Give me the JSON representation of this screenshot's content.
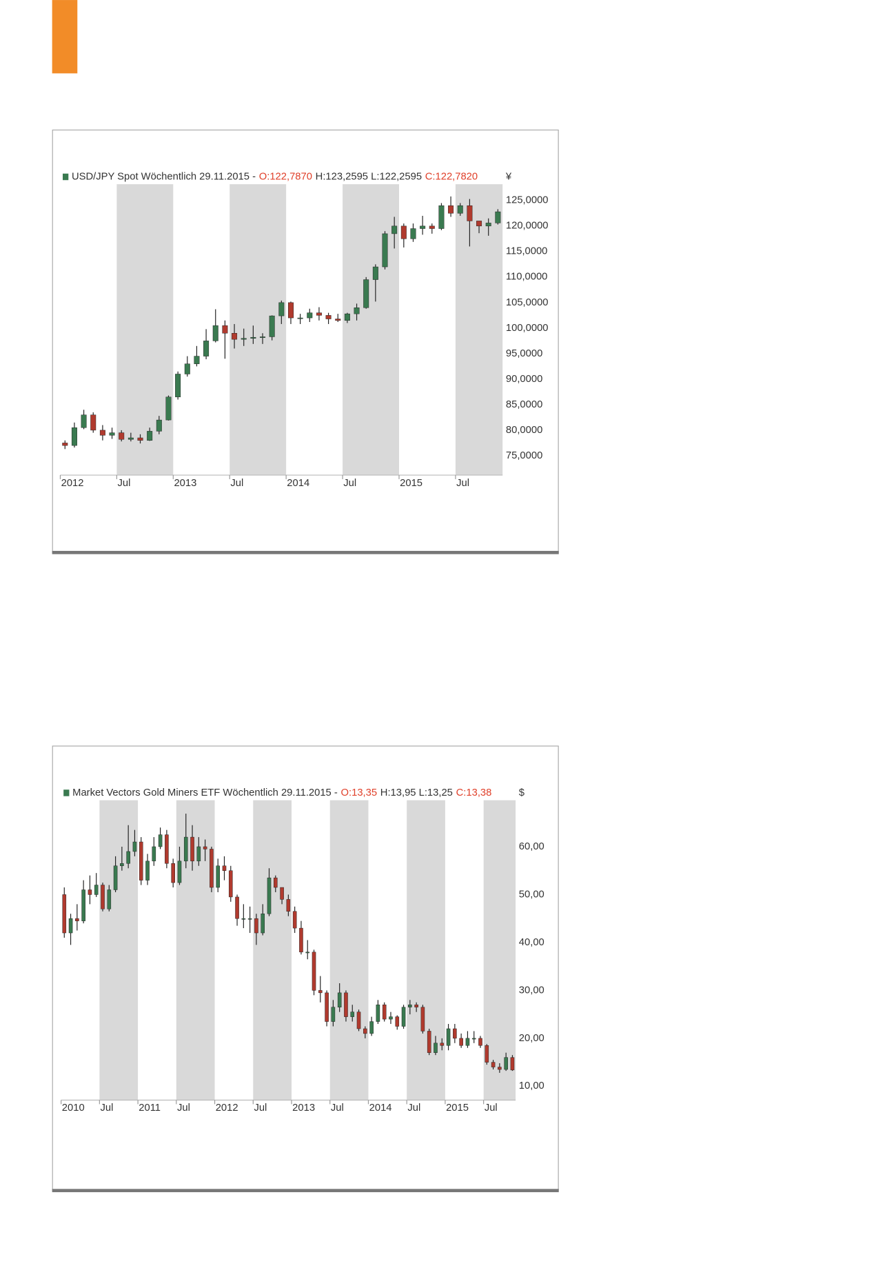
{
  "chart_data": [
    {
      "type": "candlestick",
      "header": [
        "USD/JPY Spot Wöchentlich  29.11.2015 -",
        "O:122,7870",
        "H:123,2595 L:122,2595",
        "C:122,7820"
      ],
      "header_colors": [
        "#333333",
        "#e0402a",
        "#333333",
        "#e0402a"
      ],
      "unit": "¥",
      "up_color": "#3a7a50",
      "down_color": "#b03a2e",
      "shade_color": "#d9d9d9",
      "x": [
        "2012-01",
        "2012-02",
        "2012-03",
        "2012-04",
        "2012-05",
        "2012-06",
        "2012-07",
        "2012-08",
        "2012-09",
        "2012-10",
        "2012-11",
        "2012-12",
        "2013-01",
        "2013-02",
        "2013-03",
        "2013-04",
        "2013-05",
        "2013-06",
        "2013-07",
        "2013-08",
        "2013-09",
        "2013-10",
        "2013-11",
        "2013-12",
        "2014-01",
        "2014-02",
        "2014-03",
        "2014-04",
        "2014-05",
        "2014-06",
        "2014-07",
        "2014-08",
        "2014-09",
        "2014-10",
        "2014-11",
        "2014-12",
        "2015-01",
        "2015-02",
        "2015-03",
        "2015-04",
        "2015-05",
        "2015-06",
        "2015-07",
        "2015-08",
        "2015-09",
        "2015-10",
        "2015-11"
      ],
      "open": [
        77.5,
        77,
        80.5,
        83,
        80,
        79,
        79.5,
        78.2,
        78.5,
        78,
        79.8,
        82,
        86.5,
        91,
        93,
        94.5,
        97.5,
        100.5,
        99,
        97.8,
        98,
        98.2,
        98.3,
        102.4,
        105,
        102,
        102,
        103,
        102.5,
        101.8,
        101.5,
        102.8,
        104,
        109.5,
        112,
        118.5,
        120,
        117.5,
        119.5,
        120,
        119.5,
        124,
        122.5,
        124,
        121,
        120,
        120.6
      ],
      "high": [
        78,
        81.5,
        84,
        83.5,
        81,
        80.5,
        80,
        79.5,
        79.2,
        80.5,
        82.8,
        86.8,
        91.5,
        94.5,
        96.5,
        99.8,
        103.7,
        101.5,
        100.8,
        99.9,
        100.5,
        99,
        102.5,
        105.4,
        105.2,
        102.8,
        103.8,
        104.1,
        103,
        102.8,
        103,
        104.8,
        110,
        112.5,
        119,
        121.8,
        120.5,
        120.5,
        122,
        120.5,
        124.5,
        125.8,
        124.5,
        125.3,
        121,
        121.5,
        123.3
      ],
      "low": [
        76.3,
        76.6,
        80.2,
        79.5,
        78,
        78.3,
        77.8,
        77.8,
        77.4,
        77.9,
        79.2,
        81.9,
        86,
        90.5,
        92.5,
        93.9,
        97.2,
        94,
        96,
        96.5,
        96.9,
        96.9,
        97.6,
        100.8,
        100.8,
        100.8,
        101.2,
        101.5,
        100.8,
        101.2,
        101,
        101.5,
        103.8,
        105.2,
        111.5,
        115.6,
        115.8,
        116.9,
        118.3,
        118.5,
        119.2,
        121.8,
        122,
        116,
        118.6,
        118.1,
        120.3
      ],
      "close": [
        77,
        80.5,
        83,
        80,
        79,
        79.5,
        78.2,
        78.5,
        78,
        79.8,
        82,
        86.5,
        91,
        93,
        94.5,
        97.5,
        100.5,
        99,
        97.8,
        98,
        98.2,
        98.3,
        102.4,
        105,
        102,
        102,
        103,
        102.5,
        101.8,
        101.5,
        102.8,
        104,
        109.5,
        112,
        118.5,
        120,
        117.5,
        119.5,
        120,
        119.5,
        124,
        122.5,
        124,
        121,
        120,
        120.6,
        122.8
      ],
      "xlim": [
        "2012-01",
        "2015-12"
      ],
      "xticks": [
        {
          "value": "2012-01",
          "label": "2012"
        },
        {
          "value": "2012-07",
          "label": "Jul"
        },
        {
          "value": "2013-01",
          "label": "2013"
        },
        {
          "value": "2013-07",
          "label": "Jul"
        },
        {
          "value": "2014-01",
          "label": "2014"
        },
        {
          "value": "2014-07",
          "label": "Jul"
        },
        {
          "value": "2015-01",
          "label": "2015"
        },
        {
          "value": "2015-07",
          "label": "Jul"
        }
      ],
      "shading": [
        [
          "2012-07",
          "2013-01"
        ],
        [
          "2013-07",
          "2014-01"
        ],
        [
          "2014-07",
          "2015-01"
        ],
        [
          "2015-07",
          "2015-12"
        ]
      ],
      "ylim": [
        71.2,
        128.2
      ],
      "yticks": [
        {
          "value": 75,
          "label": "75,0000"
        },
        {
          "value": 80,
          "label": "80,0000"
        },
        {
          "value": 85,
          "label": "85,0000"
        },
        {
          "value": 90,
          "label": "90,0000"
        },
        {
          "value": 95,
          "label": "95,0000"
        },
        {
          "value": 100,
          "label": "100,0000"
        },
        {
          "value": 105,
          "label": "105,0000"
        },
        {
          "value": 110,
          "label": "110,0000"
        },
        {
          "value": 115,
          "label": "115,0000"
        },
        {
          "value": 120,
          "label": "120,0000"
        },
        {
          "value": 125,
          "label": "125,0000"
        }
      ]
    },
    {
      "type": "candlestick",
      "header": [
        "Market Vectors Gold Miners ETF Wöchentlich  29.11.2015 -",
        "O:13,35",
        "H:13,95 L:13,25",
        "C:13,38"
      ],
      "header_colors": [
        "#333333",
        "#e0402a",
        "#333333",
        "#e0402a"
      ],
      "unit": "$",
      "up_color": "#3a7a50",
      "down_color": "#b03a2e",
      "shade_color": "#d9d9d9",
      "x": [
        "2010-01",
        "2010-02",
        "2010-03",
        "2010-04",
        "2010-05",
        "2010-06",
        "2010-07",
        "2010-08",
        "2010-09",
        "2010-10",
        "2010-11",
        "2010-12",
        "2011-01",
        "2011-02",
        "2011-03",
        "2011-04",
        "2011-05",
        "2011-06",
        "2011-07",
        "2011-08",
        "2011-09",
        "2011-10",
        "2011-11",
        "2011-12",
        "2012-01",
        "2012-02",
        "2012-03",
        "2012-04",
        "2012-05",
        "2012-06",
        "2012-07",
        "2012-08",
        "2012-09",
        "2012-10",
        "2012-11",
        "2012-12",
        "2013-01",
        "2013-02",
        "2013-03",
        "2013-04",
        "2013-05",
        "2013-06",
        "2013-07",
        "2013-08",
        "2013-09",
        "2013-10",
        "2013-11",
        "2013-12",
        "2014-01",
        "2014-02",
        "2014-03",
        "2014-04",
        "2014-05",
        "2014-06",
        "2014-07",
        "2014-08",
        "2014-09",
        "2014-10",
        "2014-11",
        "2014-12",
        "2015-01",
        "2015-02",
        "2015-03",
        "2015-04",
        "2015-05",
        "2015-06",
        "2015-07",
        "2015-08",
        "2015-09",
        "2015-10",
        "2015-11"
      ],
      "open": [
        50,
        42,
        45,
        44.5,
        51,
        50,
        52,
        47,
        51,
        56,
        56.5,
        59,
        61,
        53,
        57,
        60,
        62.5,
        56.5,
        52.5,
        57,
        62,
        57,
        60,
        59.5,
        51.5,
        56,
        55,
        49.5,
        45,
        45,
        45,
        42,
        46,
        53.5,
        51.5,
        49,
        46.5,
        43,
        38,
        38,
        30,
        29.5,
        23.5,
        26.5,
        29.5,
        24.5,
        25.5,
        22,
        21,
        23.5,
        27,
        24,
        24.5,
        22.5,
        26.5,
        27,
        26.5,
        21.5,
        17,
        19,
        18.5,
        22,
        20,
        18.5,
        20,
        20,
        18.5,
        15,
        14,
        13.5,
        16
      ],
      "high": [
        51.5,
        46,
        48,
        53,
        54,
        54.5,
        52.5,
        52,
        58,
        60,
        64.5,
        63.5,
        62,
        58.5,
        62,
        64,
        63.5,
        57.5,
        60,
        66.9,
        64.5,
        62,
        61.5,
        60,
        57.5,
        58,
        56,
        50,
        48,
        47.5,
        46,
        48,
        55.5,
        54,
        51.5,
        50,
        47.5,
        44.5,
        40.5,
        38.5,
        33,
        30,
        28,
        31.5,
        30,
        27,
        26,
        22.5,
        24.5,
        28,
        27.5,
        25.5,
        24.8,
        27,
        28,
        27.5,
        27,
        22,
        20.5,
        20,
        23,
        23,
        21,
        21.5,
        21.5,
        20.5,
        18.8,
        15.5,
        14.8,
        17,
        16.5
      ],
      "low": [
        41,
        39.5,
        42.5,
        44,
        48,
        49.5,
        46.5,
        46.5,
        50.5,
        55,
        55.5,
        58,
        52,
        52,
        56,
        59.5,
        55.5,
        51.5,
        52,
        55.5,
        55,
        56,
        57,
        50.5,
        50.5,
        53,
        48.5,
        43.5,
        43,
        42,
        39.5,
        41.5,
        45.5,
        50.5,
        48,
        45.5,
        42,
        37.5,
        36.5,
        29,
        27.5,
        22.5,
        22.5,
        25.5,
        23.5,
        23.5,
        21.5,
        20,
        20.5,
        23,
        23.5,
        23,
        21.8,
        22,
        25,
        25.5,
        21,
        16.5,
        16.5,
        17.5,
        17.5,
        19,
        18,
        18,
        19,
        18,
        14.5,
        13.5,
        12.8,
        13.2,
        13.2
      ],
      "close": [
        42,
        45,
        44.5,
        51,
        50,
        52,
        47,
        51,
        56,
        56.5,
        59,
        61,
        53,
        57,
        60,
        62.5,
        56.5,
        52.5,
        57,
        62,
        57,
        60,
        59.5,
        51.5,
        56,
        55,
        49.5,
        45,
        45,
        45,
        42,
        46,
        53.5,
        51.5,
        49,
        46.5,
        43,
        38,
        38,
        30,
        29.5,
        23.5,
        26.5,
        29.5,
        24.5,
        25.5,
        22,
        21,
        23.5,
        27,
        24,
        24.5,
        22.5,
        26.5,
        27,
        26.5,
        21.5,
        17,
        19,
        18.5,
        22,
        20,
        18.5,
        20,
        20,
        18.5,
        15,
        14,
        13.5,
        16,
        13.38
      ],
      "xlim": [
        "2010-01",
        "2015-12"
      ],
      "xticks": [
        {
          "value": "2010-01",
          "label": "2010"
        },
        {
          "value": "2010-07",
          "label": "Jul"
        },
        {
          "value": "2011-01",
          "label": "2011"
        },
        {
          "value": "2011-07",
          "label": "Jul"
        },
        {
          "value": "2012-01",
          "label": "2012"
        },
        {
          "value": "2012-07",
          "label": "Jul"
        },
        {
          "value": "2013-01",
          "label": "2013"
        },
        {
          "value": "2013-07",
          "label": "Jul"
        },
        {
          "value": "2014-01",
          "label": "2014"
        },
        {
          "value": "2014-07",
          "label": "Jul"
        },
        {
          "value": "2015-01",
          "label": "2015"
        },
        {
          "value": "2015-07",
          "label": "Jul"
        }
      ],
      "shading": [
        [
          "2010-07",
          "2011-01"
        ],
        [
          "2011-07",
          "2012-01"
        ],
        [
          "2012-07",
          "2013-01"
        ],
        [
          "2013-07",
          "2014-01"
        ],
        [
          "2014-07",
          "2015-01"
        ],
        [
          "2015-07",
          "2015-12"
        ]
      ],
      "ylim": [
        7.1,
        69.7
      ],
      "yticks": [
        {
          "value": 10,
          "label": "10,00"
        },
        {
          "value": 20,
          "label": "20,00"
        },
        {
          "value": 30,
          "label": "30,00"
        },
        {
          "value": 40,
          "label": "40,00"
        },
        {
          "value": 50,
          "label": "50,00"
        },
        {
          "value": 60,
          "label": "60,00"
        }
      ]
    }
  ]
}
